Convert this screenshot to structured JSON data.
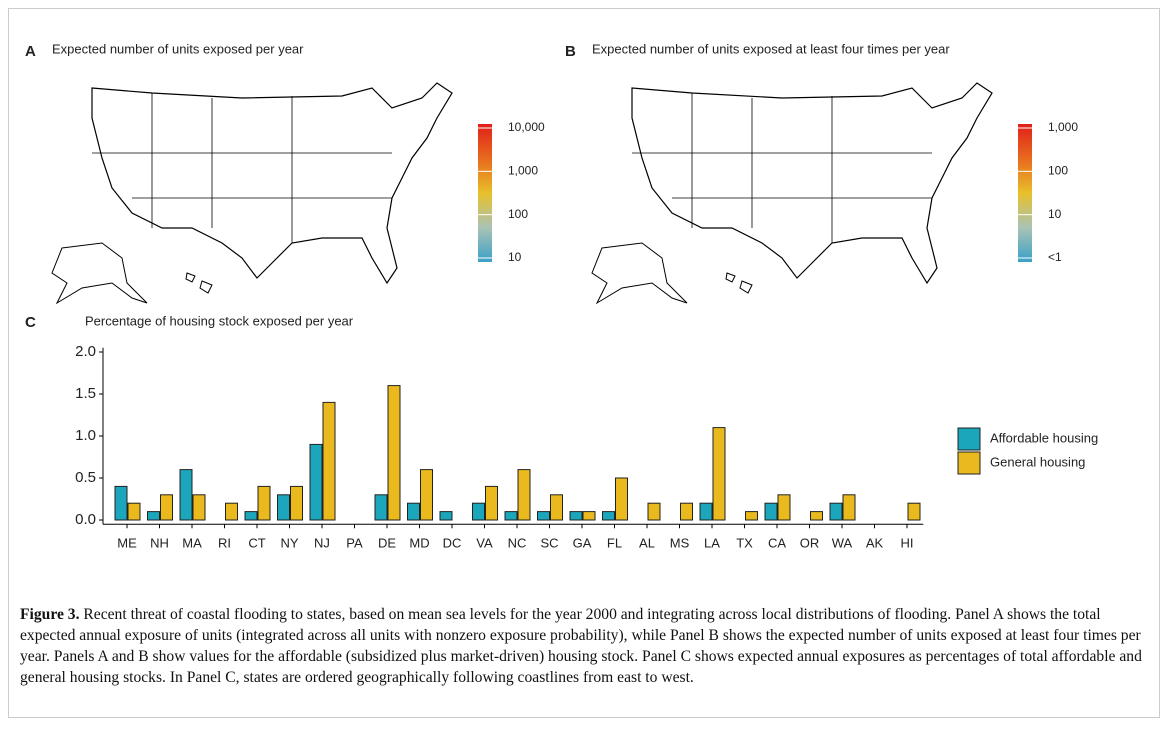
{
  "chart_data": [
    {
      "type": "map",
      "panel": "A",
      "title": "Expected number of units exposed per year",
      "colorscale": [
        "#3aa0c8",
        "#a9c3b4",
        "#e8c02a",
        "#e86a1e",
        "#e0201a"
      ],
      "log_scale": true,
      "ylim": [
        10,
        10000
      ],
      "yticks": [
        10,
        100,
        {
          "value": 1000,
          "label": "1,000"
        },
        {
          "value": 10000,
          "label": "10,000"
        }
      ]
    },
    {
      "type": "map",
      "panel": "B",
      "title": "Expected number of units exposed at least four times per year",
      "colorscale": [
        "#3aa0c8",
        "#a9c3b4",
        "#e8c02a",
        "#e86a1e",
        "#e0201a"
      ],
      "log_scale": true,
      "ylim": [
        1,
        1000
      ],
      "yticks": [
        {
          "value": 1,
          "label": "<1"
        },
        10,
        100,
        {
          "value": 1000,
          "label": "1,000"
        }
      ]
    },
    {
      "type": "bar",
      "panel": "C",
      "title": "Percentage of housing stock exposed per year",
      "categories": [
        "ME",
        "NH",
        "MA",
        "RI",
        "CT",
        "NY",
        "NJ",
        "PA",
        "DE",
        "MD",
        "DC",
        "VA",
        "NC",
        "SC",
        "GA",
        "FL",
        "AL",
        "MS",
        "LA",
        "TX",
        "CA",
        "OR",
        "WA",
        "AK",
        "HI"
      ],
      "series": [
        {
          "name": "Affordable housing",
          "color": "#1ba6bb",
          "values": [
            0.4,
            0.1,
            0.6,
            0.0,
            0.1,
            0.3,
            0.9,
            0.0,
            0.3,
            0.2,
            0.1,
            0.2,
            0.1,
            0.1,
            0.1,
            0.1,
            0.0,
            0.0,
            0.2,
            0.0,
            0.2,
            0.0,
            0.2,
            0.0,
            0.0
          ]
        },
        {
          "name": "General housing",
          "color": "#e9b91e",
          "values": [
            0.2,
            0.3,
            0.3,
            0.2,
            0.4,
            0.4,
            1.4,
            0.0,
            1.6,
            0.6,
            0.0,
            0.4,
            0.6,
            0.3,
            0.1,
            0.5,
            0.2,
            0.2,
            1.1,
            0.1,
            0.3,
            0.1,
            0.3,
            0.0,
            0.2
          ]
        }
      ],
      "ylim": [
        -0.05,
        2.05
      ],
      "yticks": [
        {
          "value": 0,
          "label": "0.0"
        },
        {
          "value": 0.5,
          "label": "0.5"
        },
        {
          "value": 1,
          "label": "1.0"
        },
        {
          "value": 1.5,
          "label": "1.5"
        },
        {
          "value": 2,
          "label": "2.0"
        }
      ],
      "legend": "right"
    }
  ],
  "caption": {
    "label": "Figure 3.",
    "text": "Recent threat of coastal flooding to states, based on mean sea levels for the year 2000 and integrating across local distributions of flooding. Panel A shows the total expected annual exposure of units (integrated across all units with nonzero exposure probability), while Panel B shows the expected number of units exposed at least four times per year. Panels A and B show values for the affordable (subsidized plus market-driven) housing stock. Panel C shows expected annual exposures as percentages of total affordable and general housing stocks. In Panel C, states are ordered geographically following coastlines from east to west."
  }
}
